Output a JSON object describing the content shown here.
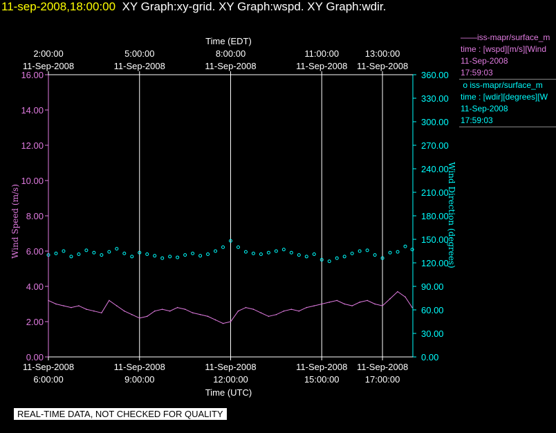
{
  "header": {
    "timestamp": "11-sep-2008,18:00:00",
    "graphs": "XY Graph:xy-grid.  XY Graph:wspd.  XY Graph:wdir."
  },
  "legend": {
    "wspd": {
      "marker": "——",
      "name": "iss-mapr/surface_m",
      "desc": "time : [wspd][m/s][Wind",
      "date": "11-Sep-2008",
      "time": "17:59:03"
    },
    "wdir": {
      "marker": "o",
      "name": "iss-mapr/surface_m",
      "desc": "time : [wdir][degrees][W",
      "date": "11-Sep-2008",
      "time": "17:59:03"
    }
  },
  "disclaimer": "REAL-TIME DATA, NOT CHECKED FOR QUALITY",
  "colors": {
    "wspd": "#e07be0",
    "wdir": "#00ffff",
    "grid": "#ffffff",
    "background": "#000000",
    "timestamp": "#ffff00"
  },
  "chart_data": {
    "type": "line",
    "xlabel_top": "Time (EDT)",
    "xlabel_bottom": "Time (UTC)",
    "ylabel_left": "Wind Speed (m/s)",
    "ylabel_right": "Wind Direction (degrees)",
    "x_range_utc_hours": [
      6.0,
      18.0
    ],
    "ylim_left": [
      0,
      16
    ],
    "ylim_right": [
      0,
      360
    ],
    "left_ticks": [
      "0.00",
      "2.00",
      "4.00",
      "6.00",
      "8.00",
      "10.00",
      "12.00",
      "14.00",
      "16.00"
    ],
    "right_ticks": [
      "0.00",
      "30.00",
      "60.00",
      "90.00",
      "120.00",
      "150.00",
      "180.00",
      "210.00",
      "240.00",
      "270.00",
      "300.00",
      "330.00",
      "360.00"
    ],
    "bottom_ticks": [
      {
        "x": 6.0,
        "date": "11-Sep-2008",
        "time": "6:00:00"
      },
      {
        "x": 9.0,
        "date": "11-Sep-2008",
        "time": "9:00:00"
      },
      {
        "x": 12.0,
        "date": "11-Sep-2008",
        "time": "12:00:00"
      },
      {
        "x": 15.0,
        "date": "11-Sep-2008",
        "time": "15:00:00"
      },
      {
        "x": 17.0,
        "date": "11-Sep-2008",
        "time": "17:00:00"
      }
    ],
    "top_ticks": [
      {
        "x": 6.0,
        "time": "2:00:00",
        "date": "11-Sep-2008"
      },
      {
        "x": 9.0,
        "time": "5:00:00",
        "date": "11-Sep-2008"
      },
      {
        "x": 12.0,
        "time": "8:00:00",
        "date": "11-Sep-2008"
      },
      {
        "x": 15.0,
        "time": "11:00:00",
        "date": "11-Sep-2008"
      },
      {
        "x": 17.0,
        "time": "13:00:00",
        "date": "11-Sep-2008"
      }
    ],
    "grid_lines_x": [
      9.0,
      12.0,
      15.0,
      17.0
    ],
    "series": [
      {
        "name": "iss-mapr/surface_m",
        "axis": "left",
        "style": "line",
        "x": [
          6.0,
          6.25,
          6.5,
          6.75,
          7.0,
          7.25,
          7.5,
          7.75,
          8.0,
          8.25,
          8.5,
          8.75,
          9.0,
          9.25,
          9.5,
          9.75,
          10.0,
          10.25,
          10.5,
          10.75,
          11.0,
          11.25,
          11.5,
          11.75,
          12.0,
          12.25,
          12.5,
          12.75,
          13.0,
          13.25,
          13.5,
          13.75,
          14.0,
          14.25,
          14.5,
          14.75,
          15.0,
          15.25,
          15.5,
          15.75,
          16.0,
          16.25,
          16.5,
          16.75,
          17.0,
          17.25,
          17.5,
          17.75,
          17.98
        ],
        "y": [
          3.2,
          3.0,
          2.9,
          2.8,
          2.9,
          2.7,
          2.6,
          2.5,
          3.2,
          2.9,
          2.6,
          2.4,
          2.2,
          2.3,
          2.6,
          2.7,
          2.6,
          2.8,
          2.7,
          2.5,
          2.4,
          2.3,
          2.1,
          1.9,
          2.0,
          2.6,
          2.8,
          2.7,
          2.5,
          2.3,
          2.4,
          2.6,
          2.7,
          2.6,
          2.8,
          2.9,
          3.0,
          3.1,
          3.2,
          3.0,
          2.9,
          3.1,
          3.2,
          3.0,
          2.9,
          3.3,
          3.7,
          3.4,
          2.8
        ]
      },
      {
        "name": "iss-mapr/surface_m",
        "axis": "right",
        "style": "markers",
        "x": [
          6.0,
          6.25,
          6.5,
          6.75,
          7.0,
          7.25,
          7.5,
          7.75,
          8.0,
          8.25,
          8.5,
          8.75,
          9.0,
          9.25,
          9.5,
          9.75,
          10.0,
          10.25,
          10.5,
          10.75,
          11.0,
          11.25,
          11.5,
          11.75,
          12.0,
          12.25,
          12.5,
          12.75,
          13.0,
          13.25,
          13.5,
          13.75,
          14.0,
          14.25,
          14.5,
          14.75,
          15.0,
          15.25,
          15.5,
          15.75,
          16.0,
          16.25,
          16.5,
          16.75,
          17.0,
          17.25,
          17.5,
          17.75,
          17.98
        ],
        "y": [
          130,
          132,
          135,
          128,
          131,
          136,
          133,
          130,
          134,
          138,
          132,
          128,
          133,
          131,
          129,
          126,
          128,
          127,
          130,
          132,
          129,
          131,
          135,
          140,
          148,
          140,
          134,
          132,
          131,
          133,
          135,
          137,
          133,
          130,
          128,
          131,
          124,
          122,
          126,
          128,
          132,
          135,
          136,
          130,
          126,
          133,
          134,
          141,
          137
        ]
      }
    ]
  }
}
